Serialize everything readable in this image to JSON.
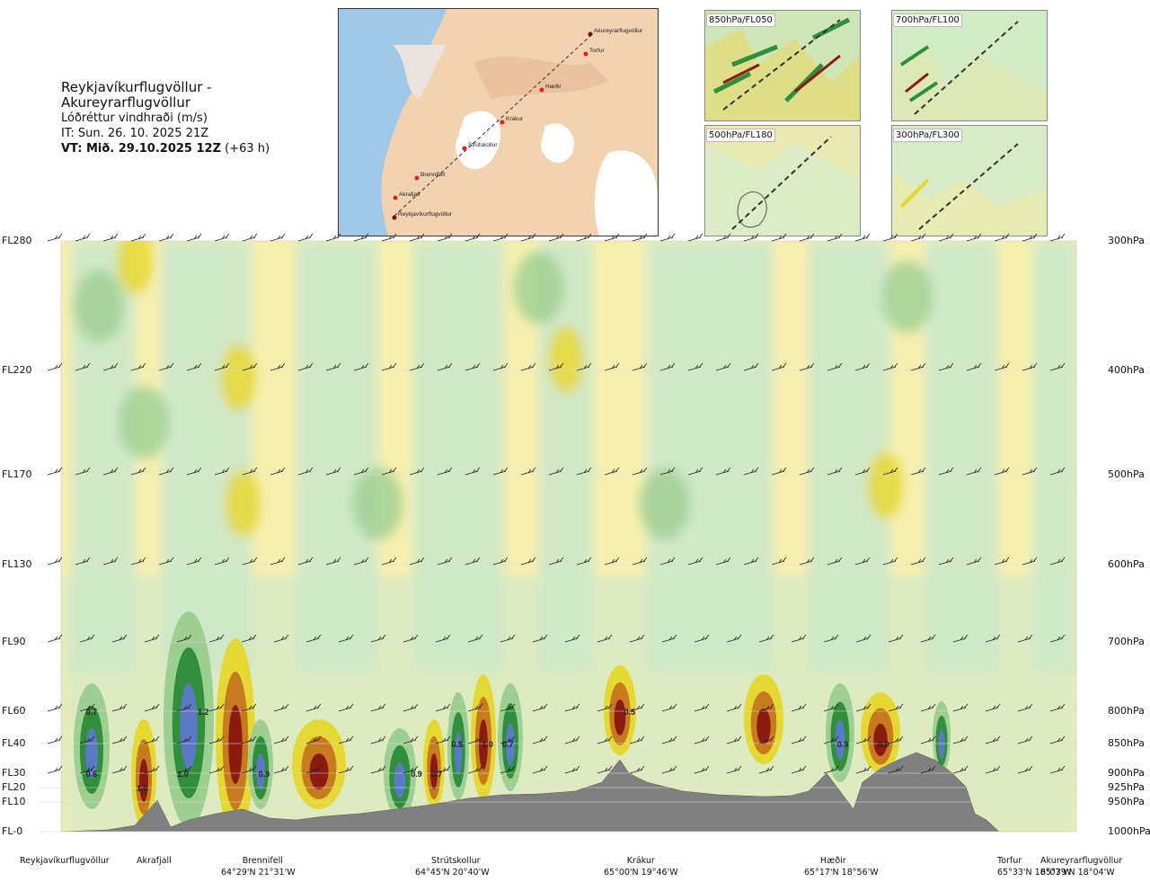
{
  "header": {
    "title": "Reykjavíkurflugvöllur - Akureyrarflugvöllur",
    "subtitle": "Lóðréttur vindhraði (m/s)",
    "init_time": "IT: Sun. 26. 10. 2025 21Z",
    "valid_prefix": "VT: Mið. 29.10.2025 12Z",
    "valid_suffix": " (+63 h)"
  },
  "map": {
    "labels": [
      "Akureyrarflugvöllur",
      "Torfur",
      "Hæðir",
      "Krákur",
      "Strútskollur",
      "Brennifell",
      "Akrafjall",
      "Reykjavíkurflugvöllur"
    ]
  },
  "thumbnails": [
    {
      "label": "850hPa/FL050"
    },
    {
      "label": "700hPa/FL100"
    },
    {
      "label": "500hPa/FL180"
    },
    {
      "label": "300hPa/FL300"
    }
  ],
  "colors": {
    "positive_strong": "#8b1a10",
    "positive_mid": "#c77a1e",
    "positive_weak": "#e6d833",
    "positive_faint": "#f5efae",
    "negative_faint": "#cfe8c9",
    "negative_weak": "#9ccf90",
    "negative_mid": "#2f8f3a",
    "negative_strong": "#5b79c4",
    "terrain": "#808080"
  },
  "chart_data": {
    "type": "heatmap",
    "variable": "Lóðréttur vindhraði (m/s)",
    "y_levels": [
      {
        "fl": "FL280",
        "hpa": "300hPa"
      },
      {
        "fl": "FL220",
        "hpa": "400hPa"
      },
      {
        "fl": "FL170",
        "hpa": "500hPa"
      },
      {
        "fl": "FL130",
        "hpa": "600hPa"
      },
      {
        "fl": "FL90",
        "hpa": "700hPa"
      },
      {
        "fl": "FL60",
        "hpa": "800hPa"
      },
      {
        "fl": "FL40",
        "hpa": "850hPa"
      },
      {
        "fl": "FL30",
        "hpa": "900hPa"
      },
      {
        "fl": "FL20",
        "hpa": "925hPa"
      },
      {
        "fl": "FL10",
        "hpa": "950hPa"
      },
      {
        "fl": "FL-0",
        "hpa": "1000hPa"
      }
    ],
    "locations": [
      {
        "name": "Reykjavíkurflugvöllur",
        "coord": ""
      },
      {
        "name": "Akrafjall",
        "coord": ""
      },
      {
        "name": "Brennifell",
        "coord": "64°29'N 21°31'W"
      },
      {
        "name": "Strútskollur",
        "coord": "64°45'N 20°40'W"
      },
      {
        "name": "Krákur",
        "coord": "65°00'N 19°46'W"
      },
      {
        "name": "Hæðir",
        "coord": "65°17'N 18°56'W"
      },
      {
        "name": "Torfur",
        "coord": "65°33'N 18°07'W"
      },
      {
        "name": "Akureyrarflugvöllur",
        "coord": "65°39'N 18°04'W"
      }
    ],
    "value_labels": [
      {
        "text": "0.6",
        "distance": 0.03,
        "level": "FL30"
      },
      {
        "text": "0.7",
        "distance": 0.03,
        "level": "FL60"
      },
      {
        "text": "1.0",
        "distance": 0.08,
        "level": "FL20"
      },
      {
        "text": "1.0",
        "distance": 0.12,
        "level": "FL30"
      },
      {
        "text": "1.2",
        "distance": 0.14,
        "level": "FL60"
      },
      {
        "text": "0.9",
        "distance": 0.2,
        "level": "FL30"
      },
      {
        "text": "0.9",
        "distance": 0.35,
        "level": "FL30"
      },
      {
        "text": "0.7",
        "distance": 0.37,
        "level": "FL30"
      },
      {
        "text": "0.5",
        "distance": 0.39,
        "level": "FL40"
      },
      {
        "text": "1.0",
        "distance": 0.42,
        "level": "FL40"
      },
      {
        "text": "0.7",
        "distance": 0.44,
        "level": "FL40"
      },
      {
        "text": "0.5",
        "distance": 0.56,
        "level": "FL60"
      },
      {
        "text": "0.9",
        "distance": 0.77,
        "level": "FL40"
      },
      {
        "text": "0.9",
        "distance": 0.81,
        "level": "FL40"
      }
    ]
  }
}
